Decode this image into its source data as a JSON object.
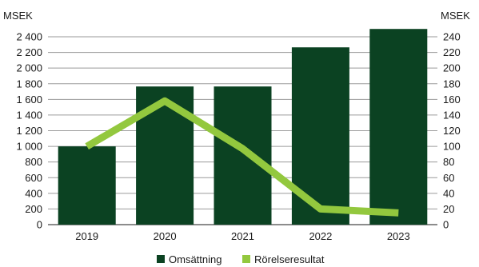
{
  "chart_data": {
    "type": "bar",
    "categories": [
      "2019",
      "2020",
      "2021",
      "2022",
      "2023"
    ],
    "left_axis": {
      "unit": "MSEK",
      "range": [
        0,
        2400
      ],
      "ticks": [
        "0",
        "200",
        "400",
        "600",
        "800",
        "1 000",
        "1 200",
        "1 400",
        "1 600",
        "1 800",
        "2 000",
        "2 200",
        "2 400"
      ]
    },
    "right_axis": {
      "unit": "MSEK",
      "range": [
        0,
        240
      ],
      "ticks": [
        "0",
        "20",
        "40",
        "60",
        "80",
        "100",
        "120",
        "140",
        "160",
        "180",
        "200",
        "220",
        "240"
      ]
    },
    "series": [
      {
        "name": "Omsättning",
        "type": "bar",
        "axis": "left",
        "color": "#0b4222",
        "values": [
          1000,
          1765,
          1765,
          2265,
          2500
        ]
      },
      {
        "name": "Rörelseresultat",
        "type": "line",
        "axis": "right",
        "color": "#93c83e",
        "values": [
          100,
          158,
          97,
          20,
          15
        ]
      }
    ],
    "grid": true,
    "legend_placement": "bottom-center"
  }
}
